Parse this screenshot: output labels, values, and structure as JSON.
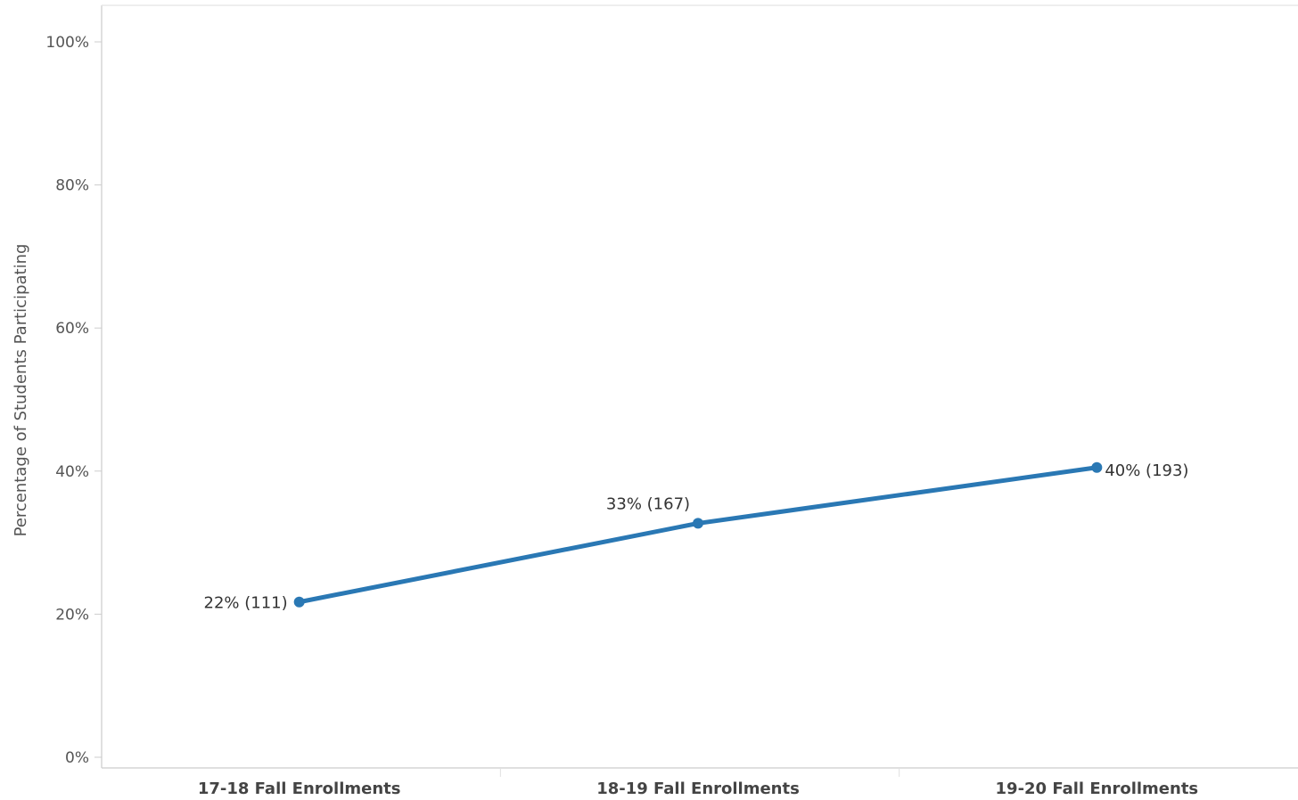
{
  "chart_data": {
    "type": "line",
    "categories": [
      "17-18 Fall Enrollments",
      "18-19 Fall Enrollments",
      "19-20 Fall Enrollments"
    ],
    "series": [
      {
        "values": [
          21.7,
          32.7,
          40.5
        ],
        "data_labels": [
          "22% (111)",
          "33% (167)",
          "40% (193)"
        ],
        "color": "#2a78b4"
      }
    ],
    "ylabel": "Percentage of Students Participating",
    "ylim": [
      0,
      100
    ],
    "yticks": [
      0,
      20,
      40,
      60,
      80,
      100
    ],
    "ytick_labels": [
      "0%",
      "20%",
      "40%",
      "60%",
      "80%",
      "100%"
    ],
    "grid": false,
    "legend": "none",
    "axis_color": "#cccccc"
  }
}
